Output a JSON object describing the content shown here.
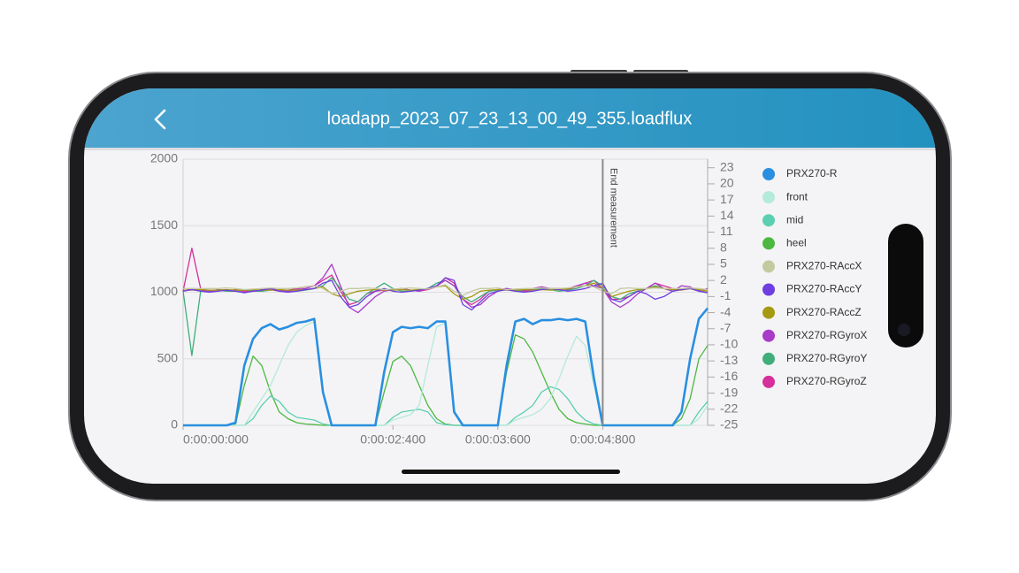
{
  "screen": {
    "title": "loadapp_2023_07_23_13_00_49_355.loadflux"
  },
  "chart_data": {
    "type": "line",
    "x": [
      0,
      0.1,
      0.2,
      0.3,
      0.4,
      0.5,
      0.6,
      0.7,
      0.8,
      0.9,
      1,
      1.1,
      1.2,
      1.3,
      1.4,
      1.5,
      1.6,
      1.7,
      1.8,
      1.9,
      2,
      2.1,
      2.2,
      2.3,
      2.4,
      2.5,
      2.6,
      2.7,
      2.8,
      2.9,
      3,
      3.1,
      3.2,
      3.3,
      3.4,
      3.5,
      3.6,
      3.7,
      3.8,
      3.9,
      4,
      4.1,
      4.2,
      4.3,
      4.4,
      4.5,
      4.6,
      4.7,
      4.8,
      4.9,
      5,
      5.1,
      5.2,
      5.3,
      5.4,
      5.5,
      5.6,
      5.7,
      5.8,
      5.9,
      6
    ],
    "xlim": [
      0,
      6
    ],
    "xticks": [
      {
        "value": 0,
        "label": "0:00:00:000"
      },
      {
        "value": 2.4,
        "label": "0:00:02:400"
      },
      {
        "value": 3.6,
        "label": "0:00:03:600"
      },
      {
        "value": 4.8,
        "label": "0:00:04:800"
      }
    ],
    "ylim": [
      0,
      2000
    ],
    "yticks": [
      0,
      500,
      1000,
      1500,
      2000
    ],
    "y2lim": [
      -25,
      24.6
    ],
    "y2ticks": [
      23,
      20,
      17,
      14,
      11,
      8,
      5,
      2,
      -1,
      -4,
      -7,
      -10,
      -13,
      -16,
      -19,
      -22,
      -25
    ],
    "grid": true,
    "legend": "right",
    "end_marker": {
      "label": "End measurement",
      "x": 4.8
    },
    "series": [
      {
        "name": "PRX270-R",
        "color": "#2a8fe0",
        "values": [
          0,
          0,
          0,
          0,
          0,
          0,
          20,
          450,
          650,
          730,
          760,
          720,
          740,
          770,
          780,
          800,
          250,
          0,
          0,
          0,
          0,
          0,
          0,
          400,
          700,
          740,
          730,
          740,
          730,
          780,
          780,
          100,
          0,
          0,
          0,
          0,
          0,
          450,
          780,
          800,
          760,
          790,
          790,
          800,
          790,
          800,
          780,
          350,
          0,
          0,
          0,
          0,
          0,
          0,
          0,
          0,
          0,
          100,
          500,
          800,
          880
        ]
      },
      {
        "name": "front",
        "color": "#b4ead8",
        "values": [
          0,
          0,
          0,
          0,
          0,
          0,
          0,
          0,
          100,
          200,
          300,
          450,
          600,
          700,
          750,
          780,
          250,
          0,
          0,
          0,
          0,
          0,
          0,
          0,
          40,
          60,
          80,
          150,
          450,
          740,
          770,
          100,
          0,
          0,
          0,
          0,
          0,
          0,
          40,
          60,
          80,
          120,
          200,
          350,
          520,
          670,
          600,
          300,
          0,
          0,
          0,
          0,
          0,
          0,
          0,
          0,
          0,
          0,
          0,
          50,
          150
        ]
      },
      {
        "name": "mid",
        "color": "#5ccfb0",
        "values": [
          0,
          0,
          0,
          0,
          0,
          0,
          0,
          0,
          50,
          150,
          220,
          180,
          100,
          60,
          50,
          40,
          10,
          0,
          0,
          0,
          0,
          0,
          0,
          0,
          60,
          100,
          110,
          120,
          100,
          20,
          5,
          0,
          0,
          0,
          0,
          0,
          0,
          0,
          60,
          100,
          150,
          250,
          290,
          270,
          200,
          100,
          40,
          10,
          0,
          0,
          0,
          0,
          0,
          0,
          0,
          0,
          0,
          0,
          0,
          100,
          180
        ]
      },
      {
        "name": "heel",
        "color": "#4cb840",
        "values": [
          0,
          0,
          0,
          0,
          0,
          0,
          10,
          300,
          520,
          450,
          250,
          100,
          50,
          20,
          10,
          5,
          0,
          0,
          0,
          0,
          0,
          0,
          0,
          250,
          480,
          520,
          450,
          300,
          150,
          50,
          10,
          0,
          0,
          0,
          0,
          0,
          0,
          400,
          680,
          650,
          550,
          400,
          250,
          120,
          50,
          20,
          10,
          0,
          0,
          0,
          0,
          0,
          0,
          0,
          0,
          0,
          0,
          50,
          200,
          500,
          600
        ]
      },
      {
        "name": "PRX270-RAccX",
        "color": "#c5c9a0",
        "axis": "y2",
        "values": [
          0.5,
          0.5,
          0.5,
          0.5,
          0.5,
          0.6,
          0.5,
          0.3,
          0.4,
          0.5,
          0.6,
          0.5,
          0.5,
          0.6,
          0.8,
          1.0,
          0.5,
          -0.5,
          0.0,
          0.5,
          0.5,
          0.6,
          0.5,
          0.3,
          0.4,
          0.5,
          0.6,
          0.5,
          0.4,
          0.8,
          1.2,
          0.0,
          -0.8,
          0.0,
          0.5,
          0.5,
          0.6,
          0.3,
          0.4,
          0.5,
          0.5,
          0.6,
          0.5,
          0.5,
          0.6,
          0.8,
          1.0,
          0.8,
          0.0,
          -0.5,
          0.5,
          0.6,
          0.5,
          0.5,
          0.6,
          0.5,
          0.5,
          0.5,
          0.6,
          0.5,
          0.3
        ]
      },
      {
        "name": "PRX270-RAccY",
        "color": "#6f3ee0",
        "axis": "y2",
        "values": [
          0,
          0.3,
          0,
          -0.2,
          0,
          0.2,
          0,
          -0.3,
          0,
          0.2,
          0.5,
          0,
          -0.2,
          0,
          0.3,
          0.5,
          1.5,
          2.0,
          -1.0,
          -3.0,
          -2.5,
          -1.0,
          0,
          0.5,
          0,
          -0.2,
          0,
          0.2,
          0.5,
          1.0,
          2.5,
          2.0,
          -2.5,
          -3.5,
          -2.0,
          -0.5,
          0,
          0.3,
          0,
          -0.2,
          0,
          0.3,
          0.5,
          0.3,
          0,
          0.2,
          0.5,
          1.0,
          1.5,
          -1.5,
          -2.0,
          -1.0,
          0,
          -0.5,
          -1.5,
          -1.0,
          0,
          0.3,
          0.5,
          0,
          -0.3
        ]
      },
      {
        "name": "PRX270-RAccZ",
        "color": "#a69a12",
        "axis": "y2",
        "values": [
          0.2,
          0.2,
          0.3,
          0.2,
          0.2,
          0.3,
          0.2,
          0.2,
          0.3,
          0.2,
          0.2,
          0.3,
          0.2,
          0.2,
          0.3,
          0.5,
          0.8,
          -0.5,
          -1.0,
          -0.5,
          0,
          0.2,
          0.3,
          0.2,
          0.2,
          0.3,
          0.2,
          0.3,
          0.5,
          0.8,
          1.0,
          -0.5,
          -1.5,
          -1.0,
          0,
          0.2,
          0.3,
          0.2,
          0.2,
          0.3,
          0.2,
          0.3,
          0.2,
          0.3,
          0.5,
          0.8,
          1.0,
          1.5,
          0.5,
          -1.0,
          -0.5,
          0,
          0.3,
          0.5,
          0.8,
          0.5,
          0.3,
          0.2,
          0.5,
          0.3,
          0
        ]
      },
      {
        "name": "PRX270-RGyroX",
        "color": "#a93bc9",
        "axis": "y2",
        "values": [
          0,
          0.5,
          0.2,
          0,
          0.3,
          0.2,
          0,
          -0.2,
          0,
          0.3,
          0.5,
          0.2,
          0,
          0.3,
          0.5,
          1.0,
          2.5,
          5.0,
          1.0,
          -3.0,
          -4.0,
          -2.5,
          -1.0,
          0,
          0.3,
          0.5,
          0.2,
          0,
          0.5,
          1.0,
          2.0,
          1.0,
          -1.5,
          -3.0,
          -2.5,
          -1.0,
          0,
          0.5,
          0.3,
          0.2,
          0.5,
          0.8,
          0.5,
          0.3,
          0.5,
          1.0,
          1.5,
          1.0,
          0.5,
          -2.0,
          -3.0,
          -2.0,
          -0.5,
          0.5,
          1.5,
          0.5,
          0,
          1.0,
          0.8,
          0,
          0.5
        ]
      },
      {
        "name": "PRX270-RGyroY",
        "color": "#3fae7a",
        "axis": "y2",
        "values": [
          0,
          -12,
          0,
          0,
          0.2,
          0,
          0,
          0.3,
          0,
          0,
          0.2,
          0.3,
          0,
          0,
          0.2,
          0.5,
          1.0,
          2.5,
          0.5,
          -1.5,
          -2.0,
          -0.5,
          0.5,
          1.5,
          0.5,
          0,
          0,
          0.2,
          0.5,
          1.5,
          2.0,
          1.0,
          -1.0,
          -2.0,
          -1.0,
          0,
          0.2,
          0.3,
          0,
          0.2,
          0.3,
          0.5,
          0.3,
          0,
          0.2,
          0.5,
          1.0,
          2.0,
          1.0,
          -1.0,
          -1.5,
          -0.5,
          0,
          0.5,
          1.0,
          0.5,
          0,
          0.3,
          0.5,
          0,
          -0.3
        ]
      },
      {
        "name": "PRX270-RGyroZ",
        "color": "#d6309a",
        "axis": "y2",
        "values": [
          0,
          8,
          0.5,
          0,
          0.2,
          0,
          0.3,
          0,
          0.2,
          0,
          0.3,
          0,
          0.2,
          0.5,
          0.8,
          1.0,
          2.0,
          3.0,
          0,
          -2.5,
          -2.0,
          -0.5,
          0,
          0.2,
          0.3,
          0.5,
          0.2,
          0,
          0.3,
          0.8,
          2.5,
          1.5,
          -1.5,
          -2.5,
          -1.5,
          0,
          0.3,
          0.5,
          0.2,
          0,
          0.2,
          0.3,
          0.5,
          0.5,
          0.3,
          0.8,
          1.5,
          2.0,
          0.5,
          -1.5,
          -1.5,
          -1.0,
          0,
          0.5,
          1.5,
          1.0,
          0.5,
          0.3,
          0.5,
          0.2,
          0
        ]
      }
    ]
  }
}
